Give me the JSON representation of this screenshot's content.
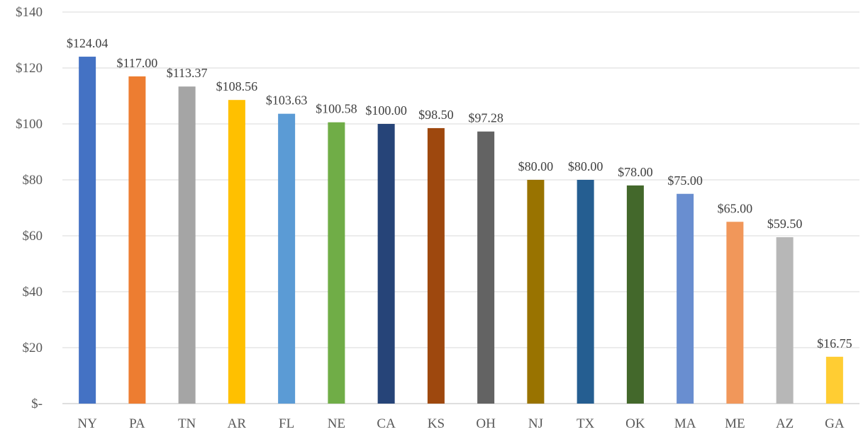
{
  "chart_data": {
    "type": "bar",
    "title": "",
    "xlabel": "",
    "ylabel": "",
    "categories": [
      "NY",
      "PA",
      "TN",
      "AR",
      "FL",
      "NE",
      "CA",
      "KS",
      "OH",
      "NJ",
      "TX",
      "OK",
      "MA",
      "ME",
      "AZ",
      "GA"
    ],
    "values": [
      124.04,
      117.0,
      113.37,
      108.56,
      103.63,
      100.58,
      100.0,
      98.5,
      97.28,
      80.0,
      80.0,
      78.0,
      75.0,
      65.0,
      59.5,
      16.75
    ],
    "value_labels": [
      "$124.04",
      "$117.00",
      "$113.37",
      "$108.56",
      "$103.63",
      "$100.58",
      "$100.00",
      "$98.50",
      "$97.28",
      "$80.00",
      "$80.00",
      "$78.00",
      "$75.00",
      "$65.00",
      "$59.50",
      "$16.75"
    ],
    "bar_colors": [
      "#4472C4",
      "#ED7D31",
      "#A5A5A5",
      "#FFC000",
      "#5B9BD5",
      "#70AD47",
      "#264478",
      "#9E480E",
      "#636363",
      "#997300",
      "#255E91",
      "#43682B",
      "#698ED0",
      "#F1975A",
      "#B7B7B7",
      "#FFCD33"
    ],
    "ylim": [
      0,
      140
    ],
    "y_ticks": [
      0,
      20,
      40,
      60,
      80,
      100,
      120,
      140
    ],
    "y_tick_labels": [
      "$-",
      "$20",
      "$40",
      "$60",
      "$80",
      "$100",
      "$120",
      "$140"
    ],
    "grid": true,
    "legend": "none"
  }
}
